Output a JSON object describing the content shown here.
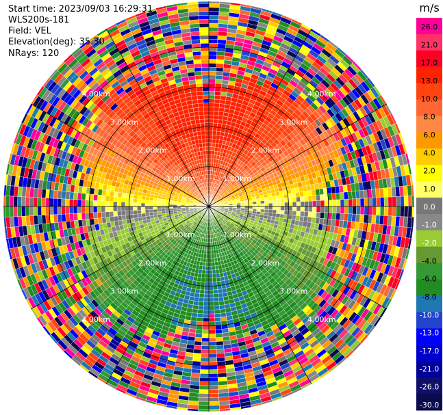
{
  "info": {
    "start_time": "Start time: 2023/09/03 16:29:31",
    "instrument": "WLS200s-181",
    "field": "Field: VEL",
    "elevation": "Elevation(deg): 35.30",
    "nrays": "NRays: 120"
  },
  "colorbar": {
    "unit": "m/s",
    "tick_labels": [
      "26.0",
      "21.0",
      "17.0",
      "13.0",
      "10.0",
      "8.0",
      "6.0",
      "4.0",
      "2.0",
      "1.0",
      "0.0",
      "-1.0",
      "-2.0",
      "-4.0",
      "-6.0",
      "-8.0",
      "-10.0",
      "-13.0",
      "-17.0",
      "-21.0",
      "-26.0",
      "-30.0"
    ],
    "colors": [
      "#ff0099",
      "#ff3366",
      "#ff0022",
      "#ff2200",
      "#ff4411",
      "#ff6633",
      "#ff8844",
      "#ff9900",
      "#ffcc00",
      "#ffff00",
      "#ffff66",
      "#777777",
      "#888888",
      "#99cc33",
      "#669933",
      "#339933",
      "#228b22",
      "#1f78b4",
      "#2244cc",
      "#0000ff",
      "#0000cc",
      "#000099",
      "#10106a",
      "#0b0b4d"
    ]
  },
  "range_labels": [
    "1.00km",
    "2.00km",
    "3.00km",
    "4.00km"
  ],
  "chart_data": {
    "type": "heatmap",
    "projection": "polar-ppi",
    "field": "VEL",
    "units": "m/s",
    "n_rays": 120,
    "elevation_deg": 35.3,
    "range_rings_km": [
      1.0,
      2.0,
      3.0,
      4.0
    ],
    "color_scale_min": -30.0,
    "color_scale_max": 26.0,
    "north_sector_velocity_approx": 15,
    "south_sector_velocity_approx": -10,
    "east_west_velocity_approx": 0
  }
}
